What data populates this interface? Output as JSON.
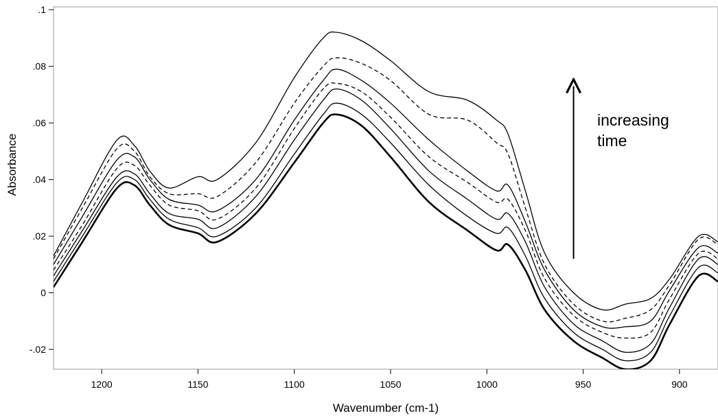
{
  "chart_data": {
    "type": "line",
    "title": "",
    "xlabel": "Wavenumber (cm-1)",
    "ylabel": "Absorbance",
    "xlim": [
      1225,
      880
    ],
    "ylim": [
      -0.027,
      0.101
    ],
    "x_reversed": true,
    "grid": false,
    "x_ticks": [
      {
        "value": 1200,
        "label": "1200"
      },
      {
        "value": 1150,
        "label": "1150"
      },
      {
        "value": 1100,
        "label": "1100"
      },
      {
        "value": 1050,
        "label": "1050"
      },
      {
        "value": 1000,
        "label": "1000"
      },
      {
        "value": 950,
        "label": "950"
      },
      {
        "value": 900,
        "label": "900"
      }
    ],
    "y_ticks": [
      {
        "value": -0.02,
        "label": "-.02"
      },
      {
        "value": 0,
        "label": "0"
      },
      {
        "value": 0.02,
        "label": ".02"
      },
      {
        "value": 0.04,
        "label": ".04"
      },
      {
        "value": 0.06,
        "label": ".06"
      },
      {
        "value": 0.08,
        "label": ".08"
      },
      {
        "value": 0.1,
        "label": ".1"
      }
    ],
    "annotation": {
      "lines": [
        "increasing",
        "time"
      ],
      "arrow_from": [
        955,
        0.012
      ],
      "arrow_to": [
        955,
        0.073
      ]
    },
    "series": [
      {
        "style": "solid",
        "bold": true,
        "values": [
          [
            1225,
            0.002
          ],
          [
            1210,
            0.018
          ],
          [
            1192,
            0.037
          ],
          [
            1183,
            0.038
          ],
          [
            1175,
            0.031
          ],
          [
            1165,
            0.024
          ],
          [
            1150,
            0.021
          ],
          [
            1140,
            0.018
          ],
          [
            1120,
            0.028
          ],
          [
            1100,
            0.046
          ],
          [
            1085,
            0.06
          ],
          [
            1078,
            0.063
          ],
          [
            1065,
            0.059
          ],
          [
            1050,
            0.048
          ],
          [
            1030,
            0.032
          ],
          [
            1010,
            0.022
          ],
          [
            995,
            0.015
          ],
          [
            989,
            0.017
          ],
          [
            980,
            0.008
          ],
          [
            970,
            -0.006
          ],
          [
            955,
            -0.017
          ],
          [
            940,
            -0.023
          ],
          [
            928,
            -0.027
          ],
          [
            915,
            -0.024
          ],
          [
            905,
            -0.011
          ],
          [
            890,
            0.006
          ],
          [
            880,
            0.004
          ]
        ]
      },
      {
        "style": "solid",
        "values": [
          [
            1225,
            0.004
          ],
          [
            1210,
            0.02
          ],
          [
            1192,
            0.039
          ],
          [
            1183,
            0.04
          ],
          [
            1175,
            0.033
          ],
          [
            1165,
            0.026
          ],
          [
            1150,
            0.023
          ],
          [
            1140,
            0.02
          ],
          [
            1120,
            0.03
          ],
          [
            1100,
            0.049
          ],
          [
            1085,
            0.063
          ],
          [
            1078,
            0.067
          ],
          [
            1065,
            0.063
          ],
          [
            1050,
            0.053
          ],
          [
            1030,
            0.038
          ],
          [
            1010,
            0.027
          ],
          [
            995,
            0.021
          ],
          [
            989,
            0.023
          ],
          [
            980,
            0.013
          ],
          [
            970,
            -0.002
          ],
          [
            955,
            -0.014
          ],
          [
            940,
            -0.02
          ],
          [
            928,
            -0.024
          ],
          [
            915,
            -0.021
          ],
          [
            905,
            -0.008
          ],
          [
            890,
            0.009
          ],
          [
            880,
            0.007
          ]
        ]
      },
      {
        "style": "solid",
        "values": [
          [
            1225,
            0.006
          ],
          [
            1210,
            0.022
          ],
          [
            1192,
            0.041
          ],
          [
            1183,
            0.042
          ],
          [
            1175,
            0.035
          ],
          [
            1165,
            0.028
          ],
          [
            1150,
            0.026
          ],
          [
            1140,
            0.023
          ],
          [
            1120,
            0.034
          ],
          [
            1100,
            0.054
          ],
          [
            1085,
            0.068
          ],
          [
            1078,
            0.072
          ],
          [
            1065,
            0.068
          ],
          [
            1050,
            0.058
          ],
          [
            1030,
            0.043
          ],
          [
            1010,
            0.033
          ],
          [
            995,
            0.026
          ],
          [
            989,
            0.028
          ],
          [
            980,
            0.018
          ],
          [
            970,
            0.002
          ],
          [
            955,
            -0.011
          ],
          [
            940,
            -0.017
          ],
          [
            928,
            -0.021
          ],
          [
            915,
            -0.018
          ],
          [
            905,
            -0.005
          ],
          [
            890,
            0.012
          ],
          [
            880,
            0.01
          ]
        ]
      },
      {
        "style": "dashed",
        "values": [
          [
            1225,
            0.008
          ],
          [
            1210,
            0.024
          ],
          [
            1192,
            0.044
          ],
          [
            1183,
            0.045
          ],
          [
            1175,
            0.038
          ],
          [
            1165,
            0.031
          ],
          [
            1150,
            0.029
          ],
          [
            1140,
            0.026
          ],
          [
            1120,
            0.037
          ],
          [
            1100,
            0.058
          ],
          [
            1085,
            0.072
          ],
          [
            1078,
            0.074
          ],
          [
            1065,
            0.071
          ],
          [
            1050,
            0.062
          ],
          [
            1030,
            0.048
          ],
          [
            1010,
            0.039
          ],
          [
            995,
            0.032
          ],
          [
            989,
            0.033
          ],
          [
            980,
            0.022
          ],
          [
            970,
            0.005
          ],
          [
            955,
            -0.008
          ],
          [
            940,
            -0.014
          ],
          [
            928,
            -0.016
          ],
          [
            915,
            -0.014
          ],
          [
            905,
            -0.002
          ],
          [
            890,
            0.014
          ],
          [
            880,
            0.012
          ]
        ]
      },
      {
        "style": "solid",
        "values": [
          [
            1225,
            0.01
          ],
          [
            1210,
            0.027
          ],
          [
            1192,
            0.047
          ],
          [
            1183,
            0.048
          ],
          [
            1175,
            0.04
          ],
          [
            1165,
            0.033
          ],
          [
            1150,
            0.031
          ],
          [
            1140,
            0.029
          ],
          [
            1120,
            0.04
          ],
          [
            1100,
            0.061
          ],
          [
            1085,
            0.075
          ],
          [
            1078,
            0.079
          ],
          [
            1065,
            0.075
          ],
          [
            1050,
            0.067
          ],
          [
            1030,
            0.054
          ],
          [
            1010,
            0.043
          ],
          [
            995,
            0.036
          ],
          [
            989,
            0.038
          ],
          [
            980,
            0.025
          ],
          [
            970,
            0.008
          ],
          [
            955,
            -0.006
          ],
          [
            940,
            -0.012
          ],
          [
            928,
            -0.012
          ],
          [
            915,
            -0.01
          ],
          [
            905,
            0.001
          ],
          [
            890,
            0.016
          ],
          [
            880,
            0.014
          ]
        ]
      },
      {
        "style": "dashed",
        "values": [
          [
            1225,
            0.012
          ],
          [
            1210,
            0.03
          ],
          [
            1192,
            0.051
          ],
          [
            1183,
            0.05
          ],
          [
            1175,
            0.041
          ],
          [
            1165,
            0.035
          ],
          [
            1150,
            0.035
          ],
          [
            1140,
            0.034
          ],
          [
            1120,
            0.046
          ],
          [
            1100,
            0.067
          ],
          [
            1085,
            0.08
          ],
          [
            1078,
            0.083
          ],
          [
            1065,
            0.081
          ],
          [
            1050,
            0.075
          ],
          [
            1030,
            0.063
          ],
          [
            1010,
            0.061
          ],
          [
            995,
            0.053
          ],
          [
            989,
            0.049
          ],
          [
            980,
            0.03
          ],
          [
            970,
            0.01
          ],
          [
            955,
            -0.004
          ],
          [
            940,
            -0.01
          ],
          [
            928,
            -0.009
          ],
          [
            915,
            -0.006
          ],
          [
            905,
            0.003
          ],
          [
            890,
            0.019
          ],
          [
            880,
            0.017
          ]
        ]
      },
      {
        "style": "solid",
        "values": [
          [
            1225,
            0.013
          ],
          [
            1210,
            0.032
          ],
          [
            1192,
            0.054
          ],
          [
            1183,
            0.052
          ],
          [
            1175,
            0.043
          ],
          [
            1165,
            0.037
          ],
          [
            1150,
            0.041
          ],
          [
            1140,
            0.04
          ],
          [
            1120,
            0.053
          ],
          [
            1100,
            0.076
          ],
          [
            1085,
            0.09
          ],
          [
            1078,
            0.092
          ],
          [
            1065,
            0.089
          ],
          [
            1050,
            0.082
          ],
          [
            1030,
            0.071
          ],
          [
            1010,
            0.068
          ],
          [
            995,
            0.061
          ],
          [
            989,
            0.056
          ],
          [
            980,
            0.036
          ],
          [
            970,
            0.014
          ],
          [
            955,
            0.0
          ],
          [
            940,
            -0.006
          ],
          [
            928,
            -0.004
          ],
          [
            915,
            -0.002
          ],
          [
            905,
            0.005
          ],
          [
            890,
            0.02
          ],
          [
            880,
            0.018
          ]
        ]
      }
    ]
  }
}
